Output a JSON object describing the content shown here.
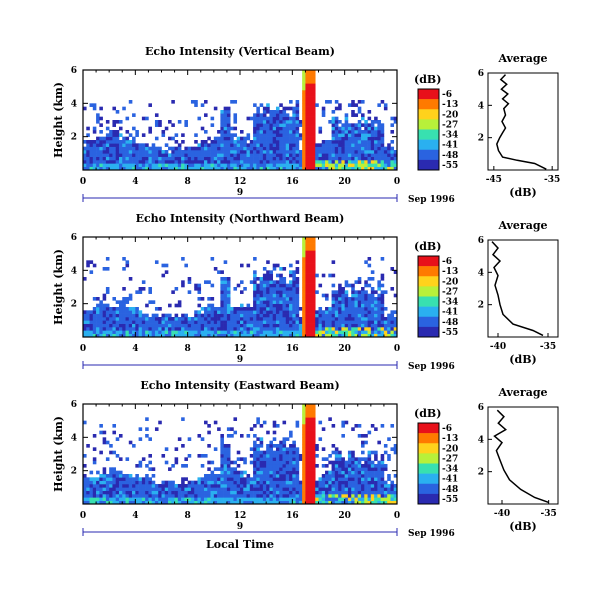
{
  "figure": {
    "x_axis_label": "Local Time",
    "day_label": "9",
    "date_label": "Sep 1996",
    "colorbar_unit": "(dB)",
    "colorbar_ticks": [
      "-6",
      "-13",
      "-20",
      "-27",
      "-34",
      "-41",
      "-48",
      "-55"
    ],
    "colors": [
      "#e8101a",
      "#ff7a00",
      "#ffd21c",
      "#b8f03a",
      "#38e0b0",
      "#2ab0f0",
      "#2a63e0",
      "#2a2ab0"
    ]
  },
  "chart_data": [
    {
      "type": "heatmap",
      "title": "Echo Intensity (Vertical Beam)",
      "ylabel": "Height (km)",
      "x_ticks": [
        "0",
        "4",
        "8",
        "12",
        "16",
        "20",
        "0"
      ],
      "y_ticks": [
        "2",
        "4",
        "6"
      ],
      "xlim": [
        0,
        24
      ],
      "ylim": [
        0,
        6
      ],
      "zlim": [
        -55,
        -6
      ],
      "features": {
        "tower_start_h": 16.8,
        "tower_end_h": 17.8,
        "tower_top_km": 6.0,
        "cloud_top_km": 4.2
      },
      "average_profile": {
        "title": "Average",
        "xlabel": "(dB)",
        "x_ticks": [
          "-45",
          "-35"
        ],
        "y_ticks": [
          "2",
          "4",
          "6"
        ],
        "xlim": [
          -46,
          -34
        ],
        "ylim": [
          0,
          6
        ],
        "points": [
          [
            -36.0,
            0.05
          ],
          [
            -38.0,
            0.4
          ],
          [
            -41.0,
            0.6
          ],
          [
            -43.5,
            0.8
          ],
          [
            -44.2,
            1.2
          ],
          [
            -44.5,
            1.6
          ],
          [
            -44.0,
            2.0
          ],
          [
            -43.5,
            2.3
          ],
          [
            -43.0,
            2.6
          ],
          [
            -43.6,
            3.0
          ],
          [
            -43.0,
            3.4
          ],
          [
            -43.3,
            3.8
          ],
          [
            -42.5,
            4.1
          ],
          [
            -43.5,
            4.4
          ],
          [
            -42.6,
            4.7
          ],
          [
            -43.7,
            5.0
          ],
          [
            -42.8,
            5.3
          ],
          [
            -43.8,
            5.6
          ],
          [
            -43.0,
            5.9
          ]
        ]
      }
    },
    {
      "type": "heatmap",
      "title": "Echo Intensity (Northward Beam)",
      "ylabel": "Height (km)",
      "x_ticks": [
        "0",
        "4",
        "8",
        "12",
        "16",
        "20",
        "0"
      ],
      "y_ticks": [
        "2",
        "4",
        "6"
      ],
      "xlim": [
        0,
        24
      ],
      "ylim": [
        0,
        6
      ],
      "zlim": [
        -55,
        -6
      ],
      "features": {
        "tower_start_h": 16.8,
        "tower_end_h": 17.8,
        "tower_top_km": 6.0,
        "cloud_top_km": 4.8
      },
      "average_profile": {
        "title": "Average",
        "xlabel": "(dB)",
        "x_ticks": [
          "-40",
          "-35"
        ],
        "y_ticks": [
          "2",
          "4",
          "6"
        ],
        "xlim": [
          -41,
          -34
        ],
        "ylim": [
          0,
          6
        ],
        "points": [
          [
            -35.5,
            0.1
          ],
          [
            -36.5,
            0.4
          ],
          [
            -38.5,
            0.8
          ],
          [
            -39.5,
            1.4
          ],
          [
            -39.8,
            2.0
          ],
          [
            -40.0,
            2.6
          ],
          [
            -40.3,
            3.2
          ],
          [
            -40.0,
            3.8
          ],
          [
            -40.4,
            4.3
          ],
          [
            -39.8,
            4.7
          ],
          [
            -40.5,
            5.1
          ],
          [
            -40.0,
            5.5
          ],
          [
            -40.6,
            5.9
          ]
        ]
      }
    },
    {
      "type": "heatmap",
      "title": "Echo Intensity (Eastward Beam)",
      "ylabel": "Height (km)",
      "x_ticks": [
        "0",
        "4",
        "8",
        "12",
        "16",
        "20",
        "0"
      ],
      "y_ticks": [
        "2",
        "4",
        "6"
      ],
      "xlim": [
        0,
        24
      ],
      "ylim": [
        0,
        6
      ],
      "zlim": [
        -55,
        -6
      ],
      "features": {
        "tower_start_h": 16.8,
        "tower_end_h": 17.8,
        "tower_top_km": 6.0,
        "cloud_top_km": 5.2
      },
      "average_profile": {
        "title": "Average",
        "xlabel": "(dB)",
        "x_ticks": [
          "-40",
          "-35"
        ],
        "y_ticks": [
          "2",
          "4",
          "6"
        ],
        "xlim": [
          -41.5,
          -34
        ],
        "ylim": [
          0,
          6
        ],
        "points": [
          [
            -35.0,
            0.1
          ],
          [
            -36.5,
            0.4
          ],
          [
            -38.0,
            0.9
          ],
          [
            -39.2,
            1.5
          ],
          [
            -39.8,
            2.1
          ],
          [
            -40.2,
            2.7
          ],
          [
            -40.6,
            3.3
          ],
          [
            -40.0,
            3.8
          ],
          [
            -40.8,
            4.2
          ],
          [
            -39.6,
            4.6
          ],
          [
            -40.4,
            5.0
          ],
          [
            -39.8,
            5.4
          ],
          [
            -40.5,
            5.8
          ]
        ]
      }
    }
  ]
}
